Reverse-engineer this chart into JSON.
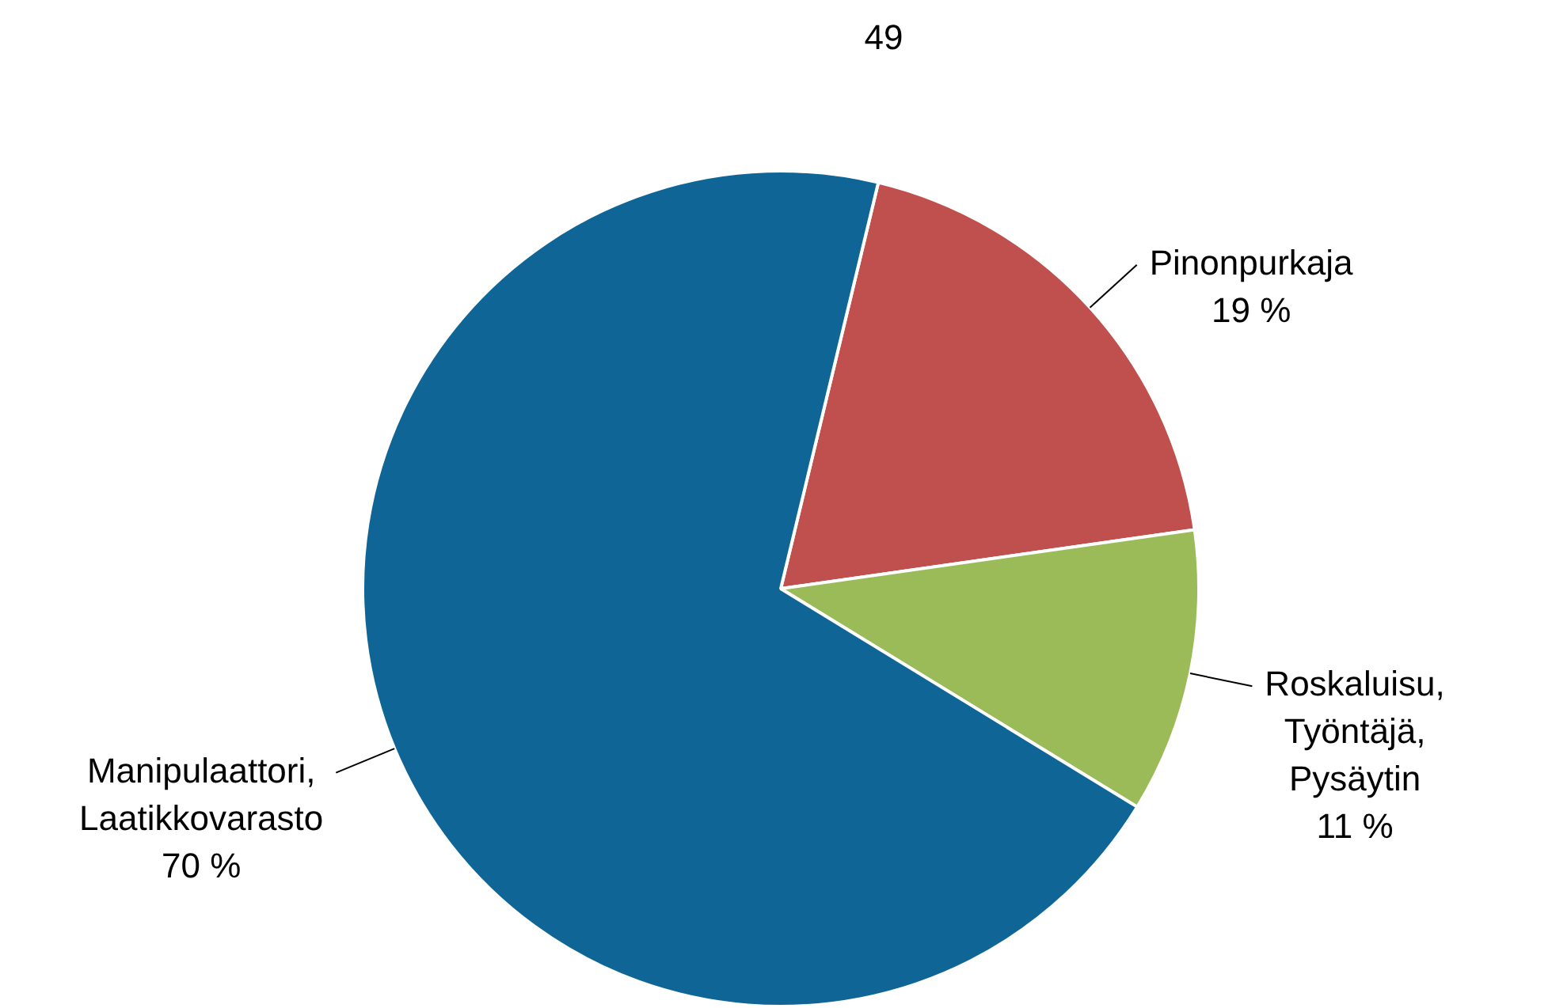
{
  "chart_data": {
    "type": "pie",
    "annotations": [
      "49"
    ],
    "categories": [
      "Pinonpurkaja",
      "Roskaluisu, Työntäjä, Pysäytin",
      "Manipulaattori, Laatikkovarasto"
    ],
    "values": [
      19,
      11,
      70
    ],
    "colors": [
      "#c0504d",
      "#9bbb59",
      "#0f6696"
    ],
    "value_labels": [
      "19 %",
      "11 %",
      "70 %"
    ],
    "legend": false
  }
}
